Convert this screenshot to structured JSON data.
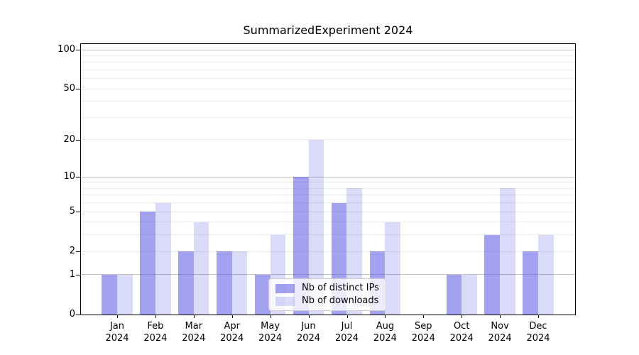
{
  "chart_data": {
    "type": "bar",
    "title": "SummarizedExperiment 2024",
    "categories": [
      "Jan 2024",
      "Feb 2024",
      "Mar 2024",
      "Apr 2024",
      "May 2024",
      "Jun 2024",
      "Jul 2024",
      "Aug 2024",
      "Sep 2024",
      "Oct 2024",
      "Nov 2024",
      "Dec 2024"
    ],
    "series": [
      {
        "name": "Nb of distinct IPs",
        "values": [
          1,
          5,
          2,
          2,
          1,
          10,
          6,
          2,
          0,
          1,
          3,
          2
        ],
        "color": "rgba(70,70,225,0.5)"
      },
      {
        "name": "Nb of downloads",
        "values": [
          1,
          6,
          4,
          2,
          3,
          20,
          8,
          4,
          0,
          1,
          8,
          3
        ],
        "color": "rgba(70,70,225,0.2)"
      }
    ],
    "xlabel": "",
    "ylabel": "",
    "yscale": "log1p",
    "ylim": [
      0,
      112
    ],
    "yticks_labeled": [
      0,
      1,
      2,
      5,
      10,
      20,
      50,
      100
    ],
    "grid_major_values": [
      1,
      10,
      100
    ],
    "grid_minor_values": [
      2,
      3,
      4,
      5,
      6,
      7,
      8,
      9,
      20,
      30,
      40,
      50,
      60,
      70,
      80,
      90
    ],
    "grid": true,
    "legend_position": "lower center"
  },
  "colors": {
    "background": "#ffffff",
    "spine": "#000000",
    "grid_major": "#c4c4c4",
    "grid_minor": "#ebebeb",
    "bar_base": "#4646e1",
    "legend_border": "#cccccc",
    "legend_background": "rgba(255,255,255,0.8)",
    "text": "#000000"
  }
}
